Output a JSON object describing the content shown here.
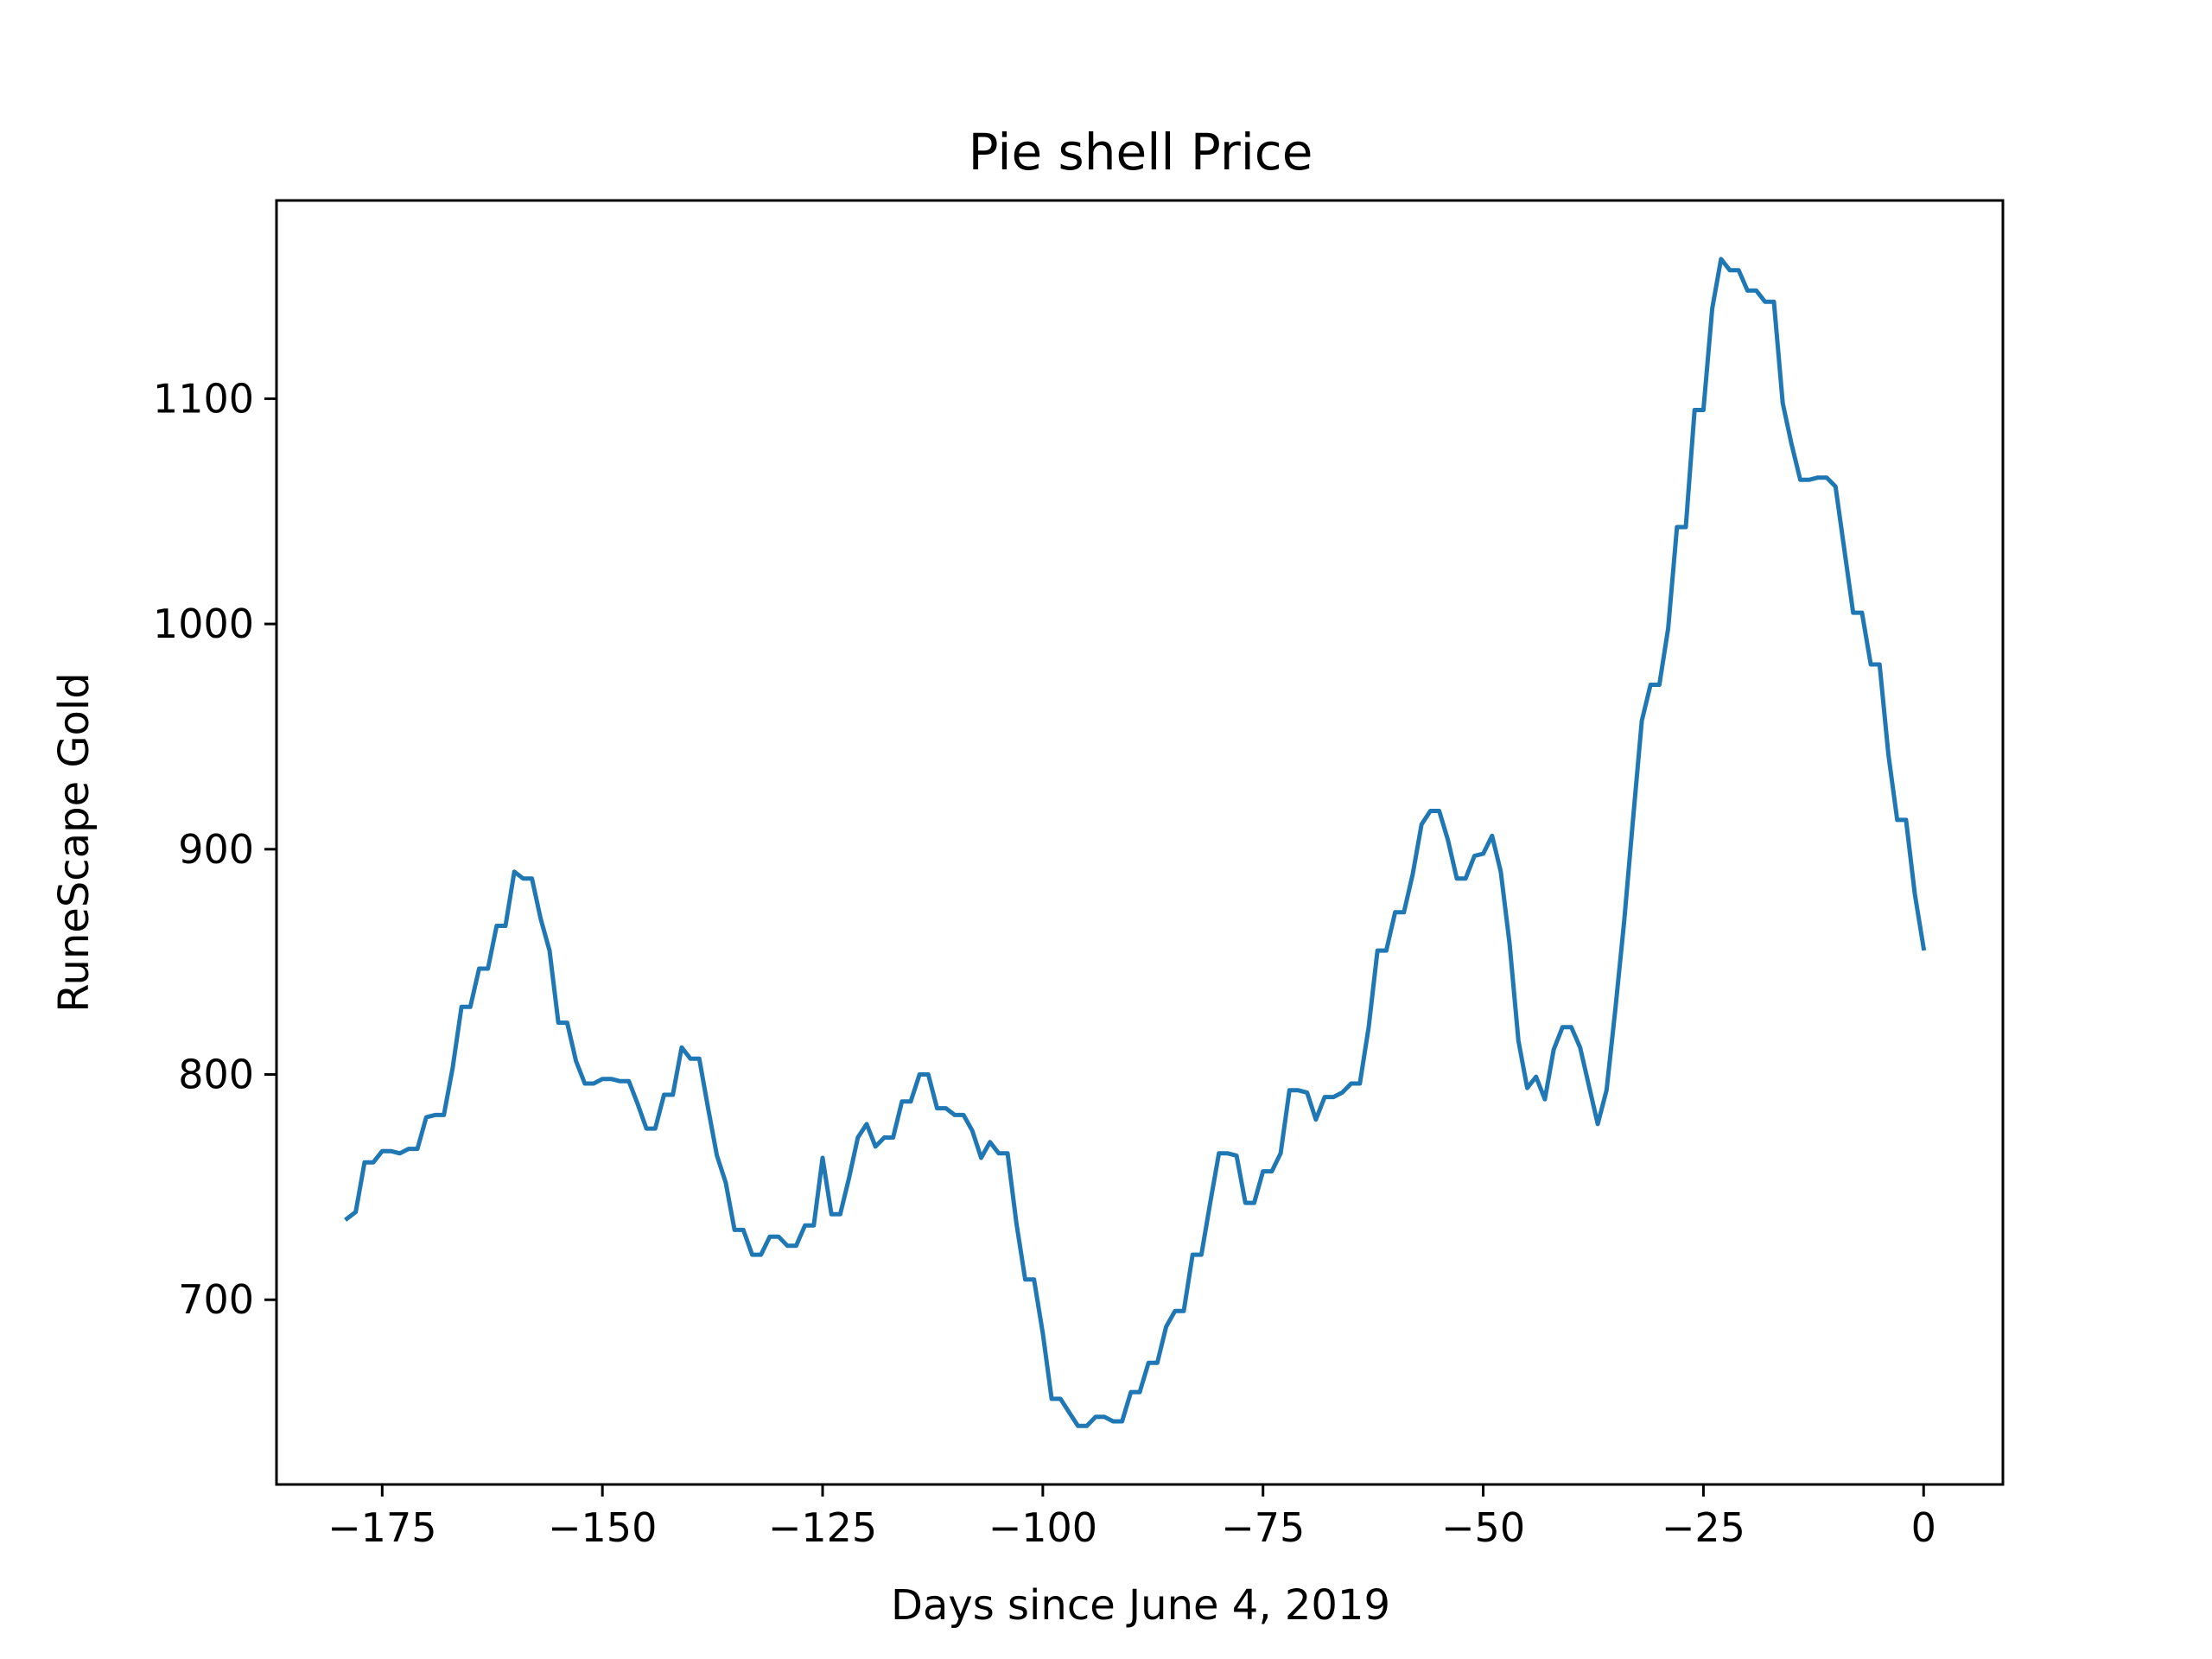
{
  "chart_data": {
    "type": "line",
    "title": "Pie shell Price",
    "xlabel": "Days since June 4, 2019",
    "ylabel": "RuneScape Gold",
    "xlim": [
      -187,
      9
    ],
    "ylim": [
      618,
      1188
    ],
    "xticks": [
      -175,
      -150,
      -125,
      -100,
      -75,
      -50,
      -25,
      0
    ],
    "xtick_labels": [
      "−175",
      "−150",
      "−125",
      "−100",
      "−75",
      "−50",
      "−25",
      "0"
    ],
    "yticks": [
      700,
      800,
      900,
      1000,
      1100
    ],
    "ytick_labels": [
      "700",
      "800",
      "900",
      "1000",
      "1100"
    ],
    "grid": false,
    "color": "#1f77b4",
    "series": [
      {
        "points": [
          [
            -179,
            736
          ],
          [
            -178,
            739
          ],
          [
            -177,
            761
          ],
          [
            -176,
            761
          ],
          [
            -175,
            766
          ],
          [
            -174,
            766
          ],
          [
            -173,
            765
          ],
          [
            -172,
            767
          ],
          [
            -171,
            767
          ],
          [
            -170,
            781
          ],
          [
            -169,
            782
          ],
          [
            -168,
            782
          ],
          [
            -167,
            803
          ],
          [
            -166,
            830
          ],
          [
            -165,
            830
          ],
          [
            -164,
            847
          ],
          [
            -163,
            847
          ],
          [
            -162,
            866
          ],
          [
            -161,
            866
          ],
          [
            -160,
            890
          ],
          [
            -159,
            887
          ],
          [
            -158,
            887
          ],
          [
            -157,
            869
          ],
          [
            -156,
            855
          ],
          [
            -155,
            823
          ],
          [
            -154,
            823
          ],
          [
            -153,
            806
          ],
          [
            -152,
            796
          ],
          [
            -151,
            796
          ],
          [
            -150,
            798
          ],
          [
            -149,
            798
          ],
          [
            -148,
            797
          ],
          [
            -147,
            797
          ],
          [
            -146,
            787
          ],
          [
            -145,
            776
          ],
          [
            -144,
            776
          ],
          [
            -143,
            791
          ],
          [
            -142,
            791
          ],
          [
            -141,
            812
          ],
          [
            -140,
            807
          ],
          [
            -139,
            807
          ],
          [
            -138,
            785
          ],
          [
            -137,
            764
          ],
          [
            -136,
            752
          ],
          [
            -135,
            731
          ],
          [
            -134,
            731
          ],
          [
            -133,
            720
          ],
          [
            -132,
            720
          ],
          [
            -131,
            728
          ],
          [
            -130,
            728
          ],
          [
            -129,
            724
          ],
          [
            -128,
            724
          ],
          [
            -127,
            733
          ],
          [
            -126,
            733
          ],
          [
            -125,
            763
          ],
          [
            -124,
            738
          ],
          [
            -123,
            738
          ],
          [
            -122,
            754
          ],
          [
            -121,
            772
          ],
          [
            -120,
            778
          ],
          [
            -119,
            768
          ],
          [
            -118,
            772
          ],
          [
            -117,
            772
          ],
          [
            -116,
            788
          ],
          [
            -115,
            788
          ],
          [
            -114,
            800
          ],
          [
            -113,
            800
          ],
          [
            -112,
            785
          ],
          [
            -111,
            785
          ],
          [
            -110,
            782
          ],
          [
            -109,
            782
          ],
          [
            -108,
            775
          ],
          [
            -107,
            763
          ],
          [
            -106,
            770
          ],
          [
            -105,
            765
          ],
          [
            -104,
            765
          ],
          [
            -103,
            734
          ],
          [
            -102,
            709
          ],
          [
            -101,
            709
          ],
          [
            -100,
            685
          ],
          [
            -99,
            656
          ],
          [
            -98,
            656
          ],
          [
            -97,
            650
          ],
          [
            -96,
            644
          ],
          [
            -95,
            644
          ],
          [
            -94,
            648
          ],
          [
            -93,
            648
          ],
          [
            -92,
            646
          ],
          [
            -91,
            646
          ],
          [
            -90,
            659
          ],
          [
            -89,
            659
          ],
          [
            -88,
            672
          ],
          [
            -87,
            672
          ],
          [
            -86,
            688
          ],
          [
            -85,
            695
          ],
          [
            -84,
            695
          ],
          [
            -83,
            720
          ],
          [
            -82,
            720
          ],
          [
            -81,
            743
          ],
          [
            -80,
            765
          ],
          [
            -79,
            765
          ],
          [
            -78,
            764
          ],
          [
            -77,
            743
          ],
          [
            -76,
            743
          ],
          [
            -75,
            757
          ],
          [
            -74,
            757
          ],
          [
            -73,
            765
          ],
          [
            -72,
            793
          ],
          [
            -71,
            793
          ],
          [
            -70,
            792
          ],
          [
            -69,
            780
          ],
          [
            -68,
            790
          ],
          [
            -67,
            790
          ],
          [
            -66,
            792
          ],
          [
            -65,
            796
          ],
          [
            -64,
            796
          ],
          [
            -63,
            821
          ],
          [
            -62,
            855
          ],
          [
            -61,
            855
          ],
          [
            -60,
            872
          ],
          [
            -59,
            872
          ],
          [
            -58,
            889
          ],
          [
            -57,
            911
          ],
          [
            -56,
            917
          ],
          [
            -55,
            917
          ],
          [
            -54,
            904
          ],
          [
            -53,
            887
          ],
          [
            -52,
            887
          ],
          [
            -51,
            897
          ],
          [
            -50,
            898
          ],
          [
            -49,
            906
          ],
          [
            -48,
            890
          ],
          [
            -47,
            858
          ],
          [
            -46,
            815
          ],
          [
            -45,
            794
          ],
          [
            -44,
            799
          ],
          [
            -43,
            789
          ],
          [
            -42,
            811
          ],
          [
            -41,
            821
          ],
          [
            -40,
            821
          ],
          [
            -39,
            812
          ],
          [
            -38,
            795
          ],
          [
            -37,
            778
          ],
          [
            -36,
            793
          ],
          [
            -35,
            829
          ],
          [
            -34,
            868
          ],
          [
            -33,
            913
          ],
          [
            -32,
            957
          ],
          [
            -31,
            973
          ],
          [
            -30,
            973
          ],
          [
            -29,
            998
          ],
          [
            -28,
            1043
          ],
          [
            -27,
            1043
          ],
          [
            -26,
            1095
          ],
          [
            -25,
            1095
          ],
          [
            -24,
            1140
          ],
          [
            -23,
            1162
          ],
          [
            -22,
            1157
          ],
          [
            -21,
            1157
          ],
          [
            -20,
            1148
          ],
          [
            -19,
            1148
          ],
          [
            -18,
            1143
          ],
          [
            -17,
            1143
          ],
          [
            -16,
            1098
          ],
          [
            -15,
            1080
          ],
          [
            -14,
            1064
          ],
          [
            -13,
            1064
          ],
          [
            -12,
            1065
          ],
          [
            -11,
            1065
          ],
          [
            -10,
            1061
          ],
          [
            -9,
            1033
          ],
          [
            -8,
            1005
          ],
          [
            -7,
            1005
          ],
          [
            -6,
            982
          ],
          [
            -5,
            982
          ],
          [
            -4,
            942
          ],
          [
            -3,
            913
          ],
          [
            -2,
            913
          ],
          [
            -1,
            880
          ],
          [
            0,
            856
          ]
        ]
      }
    ]
  }
}
